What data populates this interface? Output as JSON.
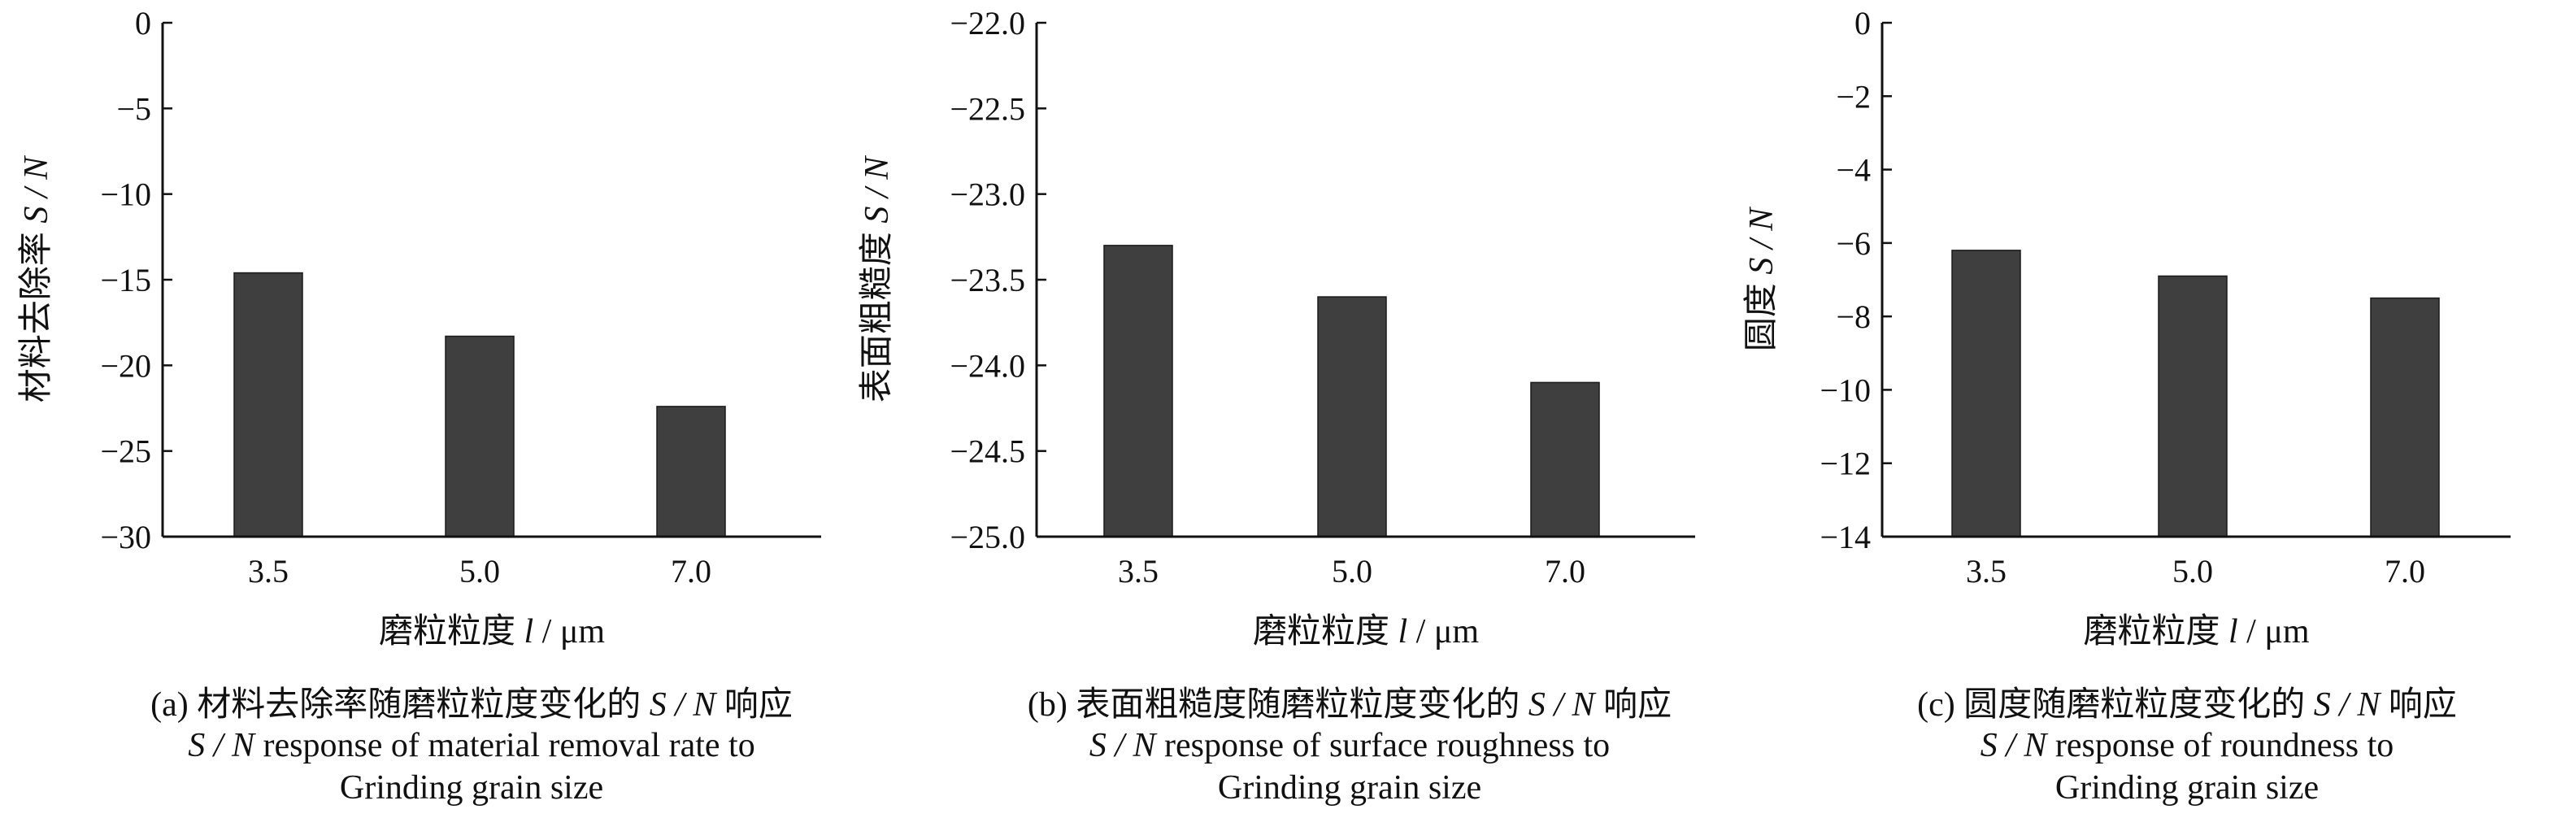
{
  "chart_data": [
    {
      "type": "bar",
      "id": "a",
      "categories": [
        "3.5",
        "5.0",
        "7.0"
      ],
      "values": [
        -14.6,
        -18.3,
        -22.4
      ],
      "xlabel": "磨粒粒度 l / μm",
      "ylabel": "材料去除率 S / N",
      "ylim": [
        -30,
        0
      ],
      "yticks": [
        0,
        -5,
        -10,
        -15,
        -20,
        -25,
        -30
      ],
      "ytick_labels": [
        "0",
        "−5",
        "−10",
        "−15",
        "−20",
        "−25",
        "−30"
      ],
      "caption_lines": [
        "(a) 材料去除率随磨粒粒度变化的 S / N 响应",
        "S / N response of material removal rate to",
        "Grinding grain size"
      ],
      "bar_color": "#3f3f3f"
    },
    {
      "type": "bar",
      "id": "b",
      "categories": [
        "3.5",
        "5.0",
        "7.0"
      ],
      "values": [
        -23.3,
        -23.6,
        -24.1
      ],
      "xlabel": "磨粒粒度 l / μm",
      "ylabel": "表面粗糙度 S / N",
      "ylim": [
        -25,
        -22
      ],
      "yticks": [
        -22,
        -22.5,
        -23,
        -23.5,
        -24,
        -24.5,
        -25
      ],
      "ytick_labels": [
        "−22.0",
        "−22.5",
        "−23.0",
        "−23.5",
        "−24.0",
        "−24.5",
        "−25.0"
      ],
      "caption_lines": [
        "(b) 表面粗糙度随磨粒粒度变化的 S / N 响应",
        "S / N response of surface roughness to",
        "Grinding grain size"
      ],
      "bar_color": "#3f3f3f"
    },
    {
      "type": "bar",
      "id": "c",
      "categories": [
        "3.5",
        "5.0",
        "7.0"
      ],
      "values": [
        -6.2,
        -6.9,
        -7.5
      ],
      "xlabel": "磨粒粒度 l / μm",
      "ylabel": "圆度 S / N",
      "ylim": [
        -14,
        0
      ],
      "yticks": [
        0,
        -2,
        -4,
        -6,
        -8,
        -10,
        -12,
        -14
      ],
      "ytick_labels": [
        "0",
        "−2",
        "−4",
        "−6",
        "−8",
        "−10",
        "−12",
        "−14"
      ],
      "caption_lines": [
        "(c) 圆度随磨粒粒度变化的 S / N 响应",
        "S / N response of roundness to",
        "Grinding grain size"
      ],
      "bar_color": "#3f3f3f"
    }
  ]
}
